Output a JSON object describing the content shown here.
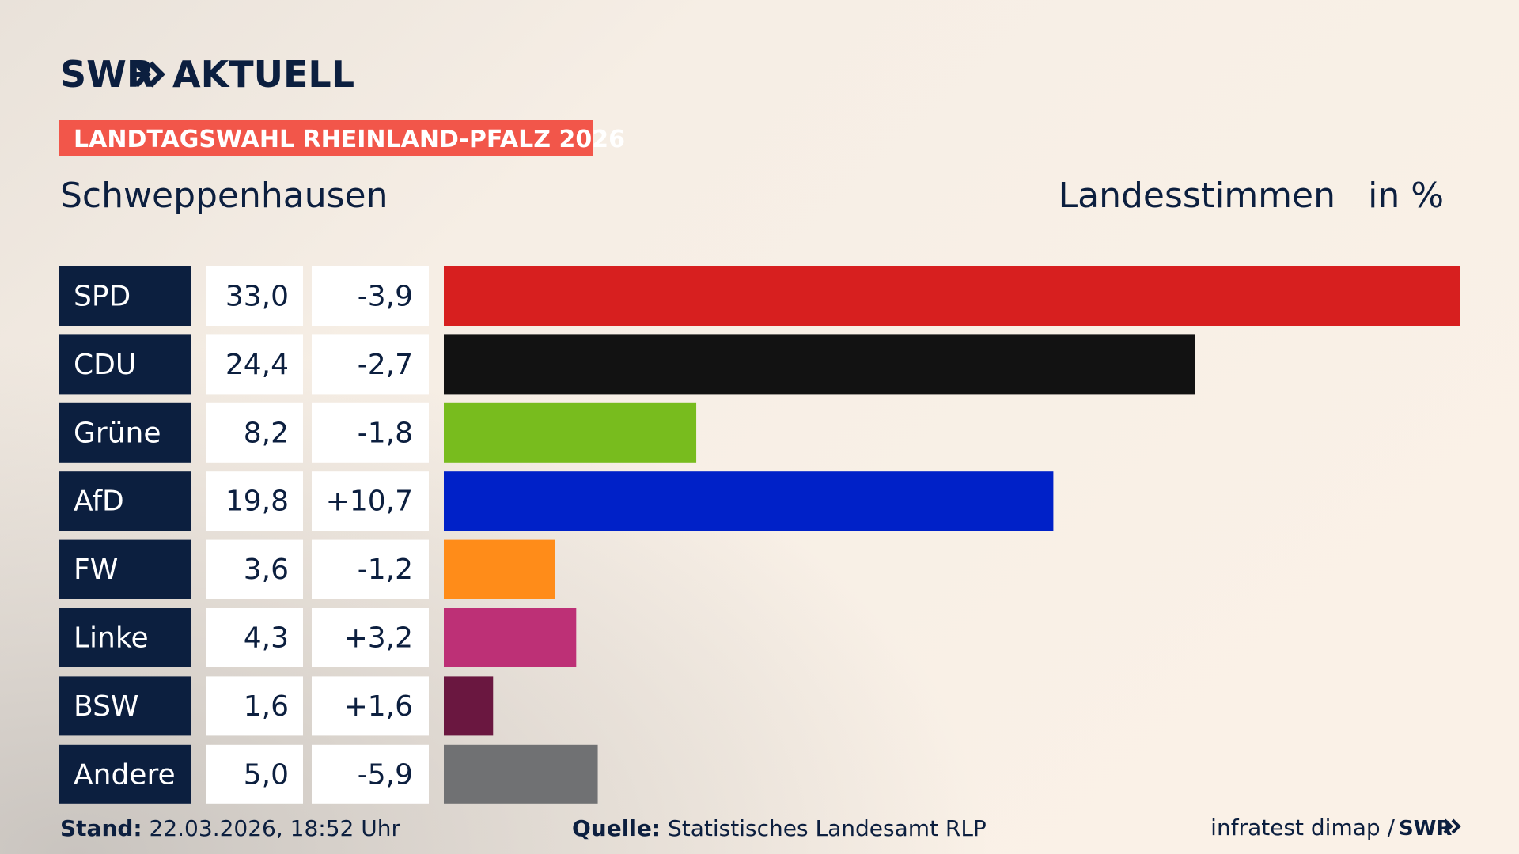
{
  "brand": "SWR",
  "section": "AKTUELL",
  "banner": "LANDTAGSWAHL RHEINLAND-PFALZ 2026",
  "chart_data": {
    "type": "bar",
    "title": "Schweppenhausen",
    "subtitle": "Landesstimmen",
    "unit": "in %",
    "categories": [
      "SPD",
      "CDU",
      "Grüne",
      "AfD",
      "FW",
      "Linke",
      "BSW",
      "Andere"
    ],
    "values": [
      33.0,
      24.4,
      8.2,
      19.8,
      3.6,
      4.3,
      1.6,
      5.0
    ],
    "value_labels": [
      "33,0",
      "24,4",
      "8,2",
      "19,8",
      "3,6",
      "4,3",
      "1,6",
      "5,0"
    ],
    "changes": [
      -3.9,
      -2.7,
      -1.8,
      10.7,
      -1.2,
      3.2,
      1.6,
      -5.9
    ],
    "change_labels": [
      "-3,9",
      "-2,7",
      "-1,8",
      "+10,7",
      "-1,2",
      "+3,2",
      "+1,6",
      "-5,9"
    ],
    "colors": [
      "#d71f1f",
      "#121212",
      "#78bc1e",
      "#0021c8",
      "#ff8c19",
      "#bd3076",
      "#6a1740",
      "#707173"
    ]
  },
  "footer": {
    "stand_label": "Stand:",
    "stand": "22.03.2026, 18:52 Uhr",
    "source_label": "Quelle:",
    "source": "Statistisches Landesamt RLP",
    "credit": "infratest dimap /",
    "credit_brand": "SWR"
  }
}
